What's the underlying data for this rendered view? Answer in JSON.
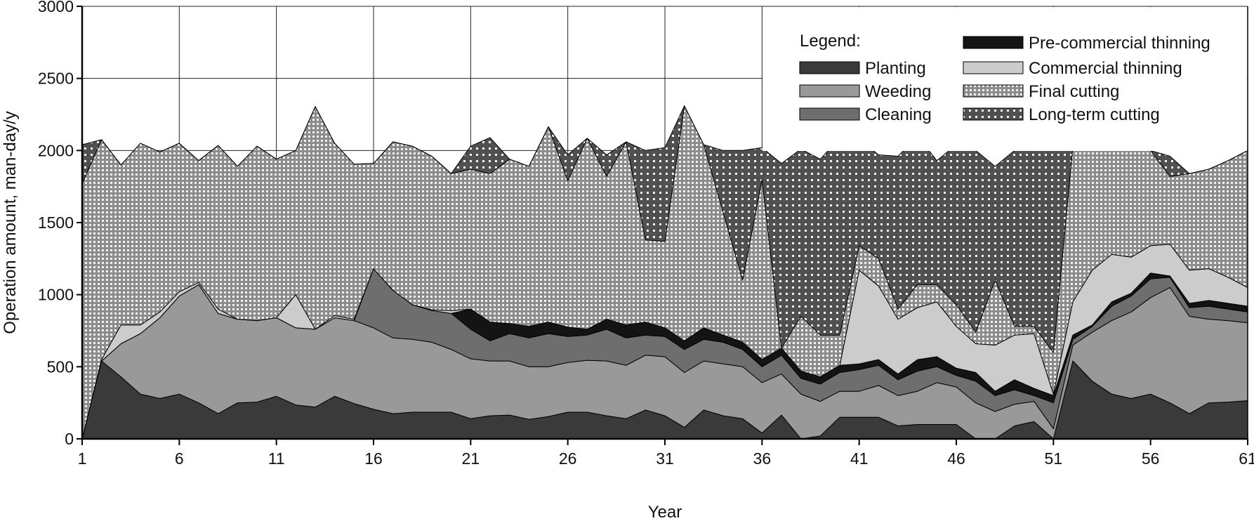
{
  "chart_data": {
    "type": "area",
    "stacked": true,
    "title": "",
    "xlabel": "Year",
    "ylabel": "Operation amount, man-day/y",
    "xlim": [
      1,
      61
    ],
    "ylim": [
      0,
      3000
    ],
    "x_ticks": [
      "1",
      "6",
      "11",
      "16",
      "21",
      "26",
      "31",
      "36",
      "41",
      "46",
      "51",
      "56",
      "61"
    ],
    "y_ticks": [
      "0",
      "500",
      "1000",
      "1500",
      "2000",
      "2500",
      "3000"
    ],
    "grid": true,
    "legend_title": "Legend:",
    "legend_position": "top-right",
    "x": [
      1,
      2,
      3,
      4,
      5,
      6,
      7,
      8,
      9,
      10,
      11,
      12,
      13,
      14,
      15,
      16,
      17,
      18,
      19,
      20,
      21,
      22,
      23,
      24,
      25,
      26,
      27,
      28,
      29,
      30,
      31,
      32,
      33,
      34,
      35,
      36,
      37,
      38,
      39,
      40,
      41,
      42,
      43,
      44,
      45,
      46,
      47,
      48,
      49,
      50,
      51,
      52,
      53,
      54,
      55,
      56,
      57,
      58,
      59,
      60,
      61
    ],
    "series": [
      {
        "name": "Planting",
        "color": "#3a3a3a",
        "fill": "solid",
        "values": [
          0,
          540,
          430,
          310,
          280,
          310,
          250,
          175,
          250,
          255,
          295,
          235,
          220,
          295,
          245,
          205,
          175,
          185,
          185,
          185,
          140,
          160,
          165,
          135,
          155,
          185,
          185,
          160,
          140,
          200,
          160,
          80,
          200,
          160,
          140,
          40,
          165,
          0,
          20,
          150,
          150,
          150,
          90,
          100,
          100,
          100,
          0,
          0,
          90,
          120,
          0,
          540,
          400,
          310,
          280,
          310,
          250,
          175,
          250,
          255,
          265
        ]
      },
      {
        "name": "Weeding",
        "color": "#999999",
        "fill": "solid",
        "values": [
          0,
          0,
          230,
          420,
          560,
          680,
          820,
          695,
          580,
          565,
          545,
          535,
          540,
          545,
          575,
          565,
          525,
          505,
          485,
          435,
          415,
          380,
          375,
          365,
          345,
          345,
          360,
          380,
          370,
          380,
          410,
          380,
          340,
          360,
          360,
          350,
          285,
          310,
          240,
          180,
          180,
          220,
          210,
          230,
          290,
          260,
          250,
          190,
          150,
          140,
          70,
          110,
          340,
          510,
          600,
          670,
          800,
          675,
          580,
          565,
          540
        ]
      },
      {
        "name": "Cleaning",
        "color": "#6e6e6e",
        "fill": "solid",
        "values": [
          0,
          0,
          0,
          0,
          0,
          0,
          0,
          0,
          0,
          0,
          0,
          0,
          0,
          0,
          0,
          410,
          330,
          240,
          220,
          250,
          205,
          140,
          190,
          200,
          230,
          180,
          175,
          220,
          190,
          140,
          140,
          160,
          150,
          150,
          120,
          110,
          130,
          110,
          120,
          130,
          150,
          140,
          110,
          140,
          110,
          80,
          150,
          110,
          100,
          40,
          180,
          40,
          40,
          100,
          110,
          130,
          70,
          60,
          90,
          80,
          75
        ]
      },
      {
        "name": "Pre-commercial thinning",
        "color": "#141414",
        "fill": "solid",
        "values": [
          0,
          0,
          0,
          0,
          0,
          0,
          0,
          0,
          0,
          0,
          0,
          0,
          0,
          0,
          0,
          0,
          0,
          0,
          0,
          0,
          140,
          130,
          70,
          80,
          80,
          65,
          40,
          70,
          90,
          90,
          60,
          60,
          80,
          50,
          50,
          50,
          50,
          50,
          50,
          50,
          40,
          40,
          40,
          80,
          70,
          50,
          60,
          30,
          70,
          50,
          50,
          30,
          10,
          30,
          20,
          40,
          10,
          30,
          40,
          40,
          40
        ]
      },
      {
        "name": "Commercial thinning",
        "color": "#cccccc",
        "fill": "solid",
        "values": [
          0,
          10,
          130,
          60,
          40,
          30,
          15,
          30,
          0,
          0,
          0,
          230,
          0,
          15,
          10,
          0,
          0,
          0,
          5,
          20,
          0,
          0,
          0,
          0,
          0,
          0,
          0,
          0,
          0,
          0,
          0,
          0,
          0,
          0,
          0,
          0,
          0,
          0,
          0,
          0,
          650,
          510,
          380,
          360,
          380,
          290,
          200,
          320,
          310,
          380,
          10,
          230,
          380,
          330,
          250,
          190,
          220,
          230,
          220,
          180,
          130
        ]
      },
      {
        "name": "Final cutting",
        "color": "#b5b5b5",
        "fill": "fine-dots",
        "values": [
          1770,
          1525,
          1110,
          1260,
          1110,
          1030,
          845,
          1135,
          1060,
          1210,
          1100,
          1000,
          1545,
          1195,
          1075,
          730,
          1030,
          1100,
          1065,
          950,
          970,
          1030,
          1140,
          1110,
          1355,
          1015,
          1325,
          990,
          1270,
          570,
          600,
          1630,
          1270,
          850,
          430,
          1250,
          0,
          380,
          290,
          210,
          170,
          190,
          70,
          160,
          120,
          150,
          80,
          450,
          60,
          50,
          290,
          1080,
          830,
          780,
          810,
          660,
          470,
          670,
          690,
          810,
          950
        ]
      },
      {
        "name": "Long-term cutting",
        "color": "#555555",
        "fill": "coarse-dots",
        "values": [
          270,
          0,
          0,
          0,
          0,
          0,
          0,
          0,
          0,
          0,
          0,
          0,
          0,
          0,
          0,
          0,
          0,
          0,
          0,
          0,
          160,
          250,
          0,
          0,
          0,
          180,
          0,
          150,
          0,
          620,
          650,
          0,
          0,
          430,
          900,
          220,
          1280,
          1160,
          1220,
          1370,
          740,
          720,
          1060,
          1030,
          860,
          1110,
          1260,
          790,
          1220,
          1330,
          1440,
          0,
          0,
          0,
          0,
          0,
          140,
          0,
          0,
          0,
          0
        ]
      }
    ]
  }
}
